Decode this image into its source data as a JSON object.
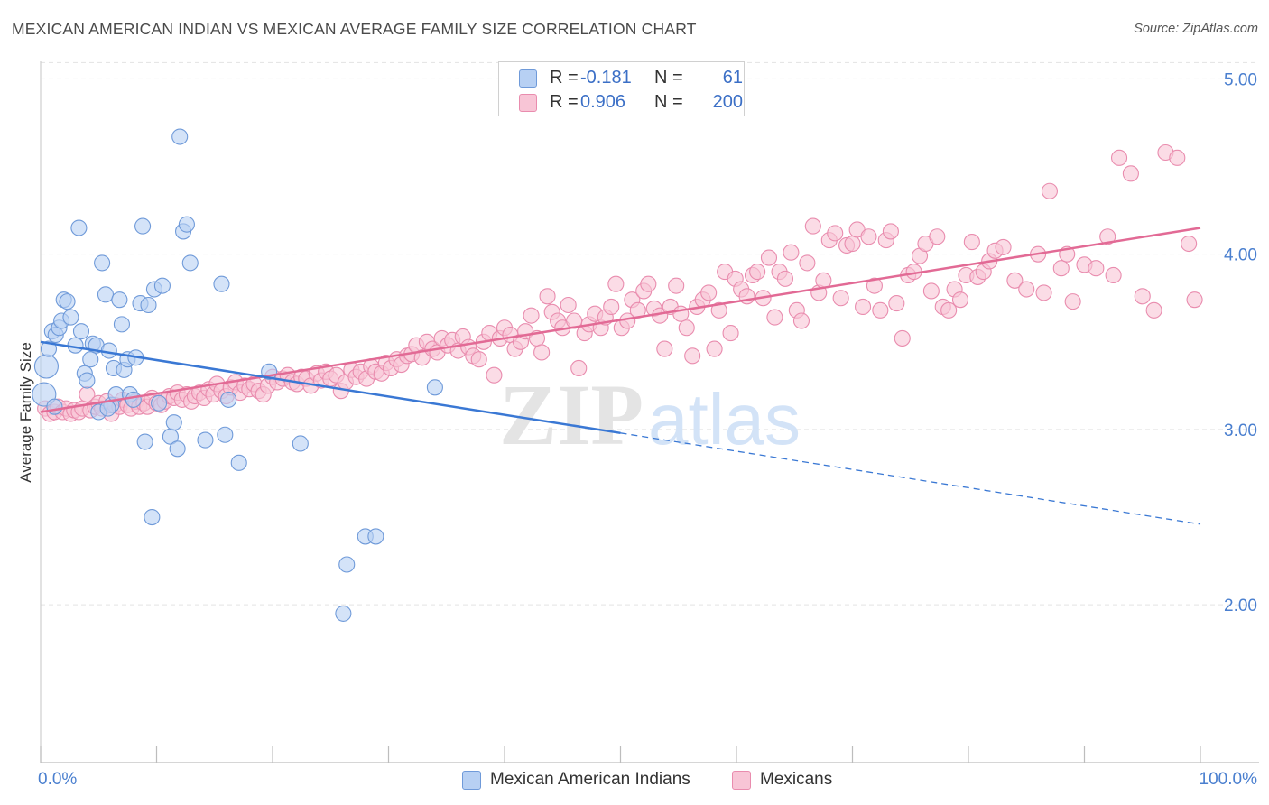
{
  "header": {
    "title": "MEXICAN AMERICAN INDIAN VS MEXICAN AVERAGE FAMILY SIZE CORRELATION CHART",
    "source": "Source: ZipAtlas.com"
  },
  "watermark": {
    "zip": "ZIP",
    "atlas": "atlas"
  },
  "legend": {
    "rows": [
      {
        "r_label": "R =",
        "r_value": "-0.181",
        "n_label": "N =",
        "n_value": "61",
        "fill": "#b7d0f3",
        "stroke": "#6f9ad9"
      },
      {
        "r_label": "R =",
        "r_value": "0.906",
        "n_label": "N =",
        "n_value": "200",
        "fill": "#f8c5d6",
        "stroke": "#e98cae"
      }
    ]
  },
  "bottom_legend": {
    "items": [
      {
        "label": "Mexican American Indians"
      },
      {
        "label": "Mexicans"
      }
    ]
  },
  "colors": {
    "blue_fill": "#b7d0f3",
    "blue_stroke": "#6f9ad9",
    "blue_line": "#3a78d4",
    "pink_fill": "#f8c5d6",
    "pink_stroke": "#e98cae",
    "pink_line": "#e26a95",
    "tick_text": "#4a7fcf",
    "grid": "#e3e3e3"
  },
  "chart_data": {
    "type": "scatter",
    "title": "MEXICAN AMERICAN INDIAN VS MEXICAN AVERAGE FAMILY SIZE CORRELATION CHART",
    "xlabel": "",
    "ylabel": "Average Family Size",
    "xlim": [
      0,
      100
    ],
    "ylim": [
      1.1,
      5.1
    ],
    "x_tick_labels": [
      {
        "value": 0,
        "label": "0.0%"
      },
      {
        "value": 100,
        "label": "100.0%"
      }
    ],
    "y_ticks": [
      {
        "value": 2.0,
        "label": "2.00"
      },
      {
        "value": 3.0,
        "label": "3.00"
      },
      {
        "value": 4.0,
        "label": "4.00"
      },
      {
        "value": 5.0,
        "label": "5.00"
      }
    ],
    "series": [
      {
        "name": "Mexican American Indians",
        "color_key": "blue",
        "trend": {
          "x0": 0,
          "y0": 3.5,
          "x1": 50,
          "y1": 2.98,
          "dash_x1": 100,
          "dash_y1": 2.46
        },
        "points": [
          [
            0.3,
            3.2
          ],
          [
            0.5,
            3.36
          ],
          [
            0.7,
            3.46
          ],
          [
            1.0,
            3.56
          ],
          [
            1.3,
            3.54
          ],
          [
            1.6,
            3.58
          ],
          [
            1.8,
            3.62
          ],
          [
            2.0,
            3.74
          ],
          [
            2.3,
            3.73
          ],
          [
            2.6,
            3.64
          ],
          [
            3.0,
            3.48
          ],
          [
            3.3,
            4.15
          ],
          [
            3.5,
            3.56
          ],
          [
            3.8,
            3.32
          ],
          [
            4.0,
            3.28
          ],
          [
            4.3,
            3.4
          ],
          [
            4.5,
            3.49
          ],
          [
            4.8,
            3.48
          ],
          [
            5.0,
            3.1
          ],
          [
            5.3,
            3.95
          ],
          [
            5.6,
            3.77
          ],
          [
            5.9,
            3.45
          ],
          [
            6.1,
            3.14
          ],
          [
            6.3,
            3.35
          ],
          [
            6.5,
            3.2
          ],
          [
            6.8,
            3.74
          ],
          [
            7.0,
            3.6
          ],
          [
            7.2,
            3.34
          ],
          [
            7.5,
            3.4
          ],
          [
            7.7,
            3.2
          ],
          [
            8.0,
            3.17
          ],
          [
            8.2,
            3.41
          ],
          [
            8.6,
            3.72
          ],
          [
            8.8,
            4.16
          ],
          [
            9.0,
            2.93
          ],
          [
            9.3,
            3.71
          ],
          [
            9.6,
            2.5
          ],
          [
            9.8,
            3.8
          ],
          [
            10.2,
            3.15
          ],
          [
            10.5,
            3.82
          ],
          [
            11.2,
            2.96
          ],
          [
            11.5,
            3.04
          ],
          [
            11.8,
            2.89
          ],
          [
            12.0,
            4.67
          ],
          [
            12.3,
            4.13
          ],
          [
            12.6,
            4.17
          ],
          [
            12.9,
            3.95
          ],
          [
            14.2,
            2.94
          ],
          [
            15.6,
            3.83
          ],
          [
            15.9,
            2.97
          ],
          [
            16.2,
            3.17
          ],
          [
            17.1,
            2.81
          ],
          [
            19.7,
            3.33
          ],
          [
            22.4,
            2.92
          ],
          [
            26.1,
            1.95
          ],
          [
            26.4,
            2.23
          ],
          [
            28.0,
            2.39
          ],
          [
            28.9,
            2.39
          ],
          [
            34.0,
            3.24
          ],
          [
            1.2,
            3.13
          ],
          [
            5.8,
            3.12
          ]
        ]
      },
      {
        "name": "Mexicans",
        "color_key": "pink",
        "trend": {
          "x0": 0,
          "y0": 3.1,
          "x1": 100,
          "y1": 4.15
        },
        "points": [
          [
            0.4,
            3.12
          ],
          [
            0.8,
            3.09
          ],
          [
            1.2,
            3.1
          ],
          [
            1.5,
            3.13
          ],
          [
            1.9,
            3.1
          ],
          [
            2.2,
            3.12
          ],
          [
            2.6,
            3.09
          ],
          [
            2.9,
            3.11
          ],
          [
            3.3,
            3.1
          ],
          [
            3.6,
            3.12
          ],
          [
            4.0,
            3.2
          ],
          [
            4.3,
            3.11
          ],
          [
            4.7,
            3.13
          ],
          [
            5.0,
            3.15
          ],
          [
            5.3,
            3.12
          ],
          [
            5.7,
            3.16
          ],
          [
            6.1,
            3.09
          ],
          [
            6.4,
            3.14
          ],
          [
            6.8,
            3.13
          ],
          [
            7.1,
            3.17
          ],
          [
            7.5,
            3.14
          ],
          [
            7.8,
            3.12
          ],
          [
            8.2,
            3.16
          ],
          [
            8.5,
            3.13
          ],
          [
            8.9,
            3.15
          ],
          [
            9.2,
            3.13
          ],
          [
            9.6,
            3.18
          ],
          [
            10.0,
            3.15
          ],
          [
            10.4,
            3.14
          ],
          [
            10.7,
            3.16
          ],
          [
            11.1,
            3.19
          ],
          [
            11.5,
            3.18
          ],
          [
            11.8,
            3.21
          ],
          [
            12.2,
            3.17
          ],
          [
            12.6,
            3.2
          ],
          [
            13.0,
            3.16
          ],
          [
            13.3,
            3.19
          ],
          [
            13.7,
            3.21
          ],
          [
            14.1,
            3.18
          ],
          [
            14.5,
            3.23
          ],
          [
            14.9,
            3.2
          ],
          [
            15.2,
            3.26
          ],
          [
            15.6,
            3.22
          ],
          [
            16.0,
            3.19
          ],
          [
            16.4,
            3.24
          ],
          [
            16.8,
            3.27
          ],
          [
            17.2,
            3.21
          ],
          [
            17.6,
            3.25
          ],
          [
            18.0,
            3.23
          ],
          [
            18.4,
            3.26
          ],
          [
            18.8,
            3.22
          ],
          [
            19.2,
            3.2
          ],
          [
            19.6,
            3.25
          ],
          [
            20.0,
            3.3
          ],
          [
            20.4,
            3.27
          ],
          [
            20.9,
            3.29
          ],
          [
            21.3,
            3.31
          ],
          [
            21.7,
            3.27
          ],
          [
            22.1,
            3.26
          ],
          [
            22.5,
            3.3
          ],
          [
            22.9,
            3.29
          ],
          [
            23.3,
            3.25
          ],
          [
            23.8,
            3.32
          ],
          [
            24.2,
            3.28
          ],
          [
            24.6,
            3.33
          ],
          [
            25.0,
            3.29
          ],
          [
            25.5,
            3.31
          ],
          [
            25.9,
            3.22
          ],
          [
            26.3,
            3.27
          ],
          [
            26.8,
            3.34
          ],
          [
            27.2,
            3.3
          ],
          [
            27.6,
            3.33
          ],
          [
            28.1,
            3.29
          ],
          [
            28.5,
            3.36
          ],
          [
            28.9,
            3.33
          ],
          [
            29.4,
            3.32
          ],
          [
            29.8,
            3.38
          ],
          [
            30.2,
            3.35
          ],
          [
            30.7,
            3.4
          ],
          [
            31.1,
            3.37
          ],
          [
            31.6,
            3.42
          ],
          [
            32.0,
            3.43
          ],
          [
            32.4,
            3.48
          ],
          [
            32.9,
            3.41
          ],
          [
            33.3,
            3.5
          ],
          [
            33.8,
            3.46
          ],
          [
            34.2,
            3.44
          ],
          [
            34.6,
            3.52
          ],
          [
            35.1,
            3.48
          ],
          [
            35.5,
            3.51
          ],
          [
            36.0,
            3.45
          ],
          [
            36.4,
            3.53
          ],
          [
            36.9,
            3.47
          ],
          [
            37.3,
            3.42
          ],
          [
            37.8,
            3.4
          ],
          [
            38.2,
            3.5
          ],
          [
            38.7,
            3.55
          ],
          [
            39.1,
            3.31
          ],
          [
            39.6,
            3.52
          ],
          [
            40.0,
            3.58
          ],
          [
            40.5,
            3.54
          ],
          [
            40.9,
            3.46
          ],
          [
            41.4,
            3.5
          ],
          [
            41.8,
            3.56
          ],
          [
            42.3,
            3.65
          ],
          [
            42.8,
            3.52
          ],
          [
            43.2,
            3.44
          ],
          [
            43.7,
            3.76
          ],
          [
            44.1,
            3.67
          ],
          [
            44.6,
            3.62
          ],
          [
            45.0,
            3.58
          ],
          [
            45.5,
            3.71
          ],
          [
            46.0,
            3.62
          ],
          [
            46.4,
            3.35
          ],
          [
            46.9,
            3.55
          ],
          [
            47.3,
            3.6
          ],
          [
            47.8,
            3.66
          ],
          [
            48.3,
            3.58
          ],
          [
            48.7,
            3.64
          ],
          [
            49.2,
            3.7
          ],
          [
            49.6,
            3.83
          ],
          [
            50.1,
            3.58
          ],
          [
            50.6,
            3.62
          ],
          [
            51.0,
            3.74
          ],
          [
            51.5,
            3.68
          ],
          [
            52.0,
            3.79
          ],
          [
            52.4,
            3.83
          ],
          [
            52.9,
            3.69
          ],
          [
            53.4,
            3.65
          ],
          [
            53.8,
            3.46
          ],
          [
            54.3,
            3.7
          ],
          [
            54.8,
            3.82
          ],
          [
            55.2,
            3.66
          ],
          [
            55.7,
            3.58
          ],
          [
            56.2,
            3.42
          ],
          [
            56.6,
            3.7
          ],
          [
            57.1,
            3.74
          ],
          [
            57.6,
            3.78
          ],
          [
            58.1,
            3.46
          ],
          [
            58.5,
            3.68
          ],
          [
            59.0,
            3.9
          ],
          [
            59.5,
            3.55
          ],
          [
            59.9,
            3.86
          ],
          [
            60.4,
            3.8
          ],
          [
            60.9,
            3.76
          ],
          [
            61.4,
            3.88
          ],
          [
            61.8,
            3.9
          ],
          [
            62.3,
            3.75
          ],
          [
            62.8,
            3.98
          ],
          [
            63.3,
            3.64
          ],
          [
            63.7,
            3.9
          ],
          [
            64.2,
            3.86
          ],
          [
            64.7,
            4.01
          ],
          [
            65.2,
            3.68
          ],
          [
            65.6,
            3.62
          ],
          [
            66.1,
            3.95
          ],
          [
            66.6,
            4.16
          ],
          [
            67.1,
            3.78
          ],
          [
            67.5,
            3.85
          ],
          [
            68.0,
            4.08
          ],
          [
            68.5,
            4.12
          ],
          [
            69.0,
            3.75
          ],
          [
            69.5,
            4.05
          ],
          [
            70.0,
            4.06
          ],
          [
            70.4,
            4.14
          ],
          [
            70.9,
            3.7
          ],
          [
            71.4,
            4.1
          ],
          [
            71.9,
            3.82
          ],
          [
            72.4,
            3.68
          ],
          [
            72.9,
            4.08
          ],
          [
            73.3,
            4.13
          ],
          [
            73.8,
            3.72
          ],
          [
            74.3,
            3.52
          ],
          [
            74.8,
            3.88
          ],
          [
            75.3,
            3.9
          ],
          [
            75.8,
            3.99
          ],
          [
            76.3,
            4.06
          ],
          [
            76.8,
            3.79
          ],
          [
            77.3,
            4.1
          ],
          [
            77.8,
            3.7
          ],
          [
            78.3,
            3.68
          ],
          [
            78.8,
            3.8
          ],
          [
            79.3,
            3.74
          ],
          [
            79.8,
            3.88
          ],
          [
            80.3,
            4.07
          ],
          [
            80.8,
            3.87
          ],
          [
            81.3,
            3.9
          ],
          [
            81.8,
            3.96
          ],
          [
            82.3,
            4.02
          ],
          [
            83.0,
            4.04
          ],
          [
            84.0,
            3.85
          ],
          [
            85.0,
            3.8
          ],
          [
            86.0,
            4.0
          ],
          [
            87.0,
            4.36
          ],
          [
            88.0,
            3.92
          ],
          [
            89.0,
            3.73
          ],
          [
            90.0,
            3.94
          ],
          [
            91.0,
            3.92
          ],
          [
            92.0,
            4.1
          ],
          [
            93.0,
            4.55
          ],
          [
            94.0,
            4.46
          ],
          [
            95.0,
            3.76
          ],
          [
            96.0,
            3.68
          ],
          [
            97.0,
            4.58
          ],
          [
            98.0,
            4.55
          ],
          [
            99.0,
            4.06
          ],
          [
            99.5,
            3.74
          ],
          [
            88.5,
            4.0
          ],
          [
            86.5,
            3.78
          ],
          [
            92.5,
            3.88
          ]
        ]
      }
    ]
  }
}
